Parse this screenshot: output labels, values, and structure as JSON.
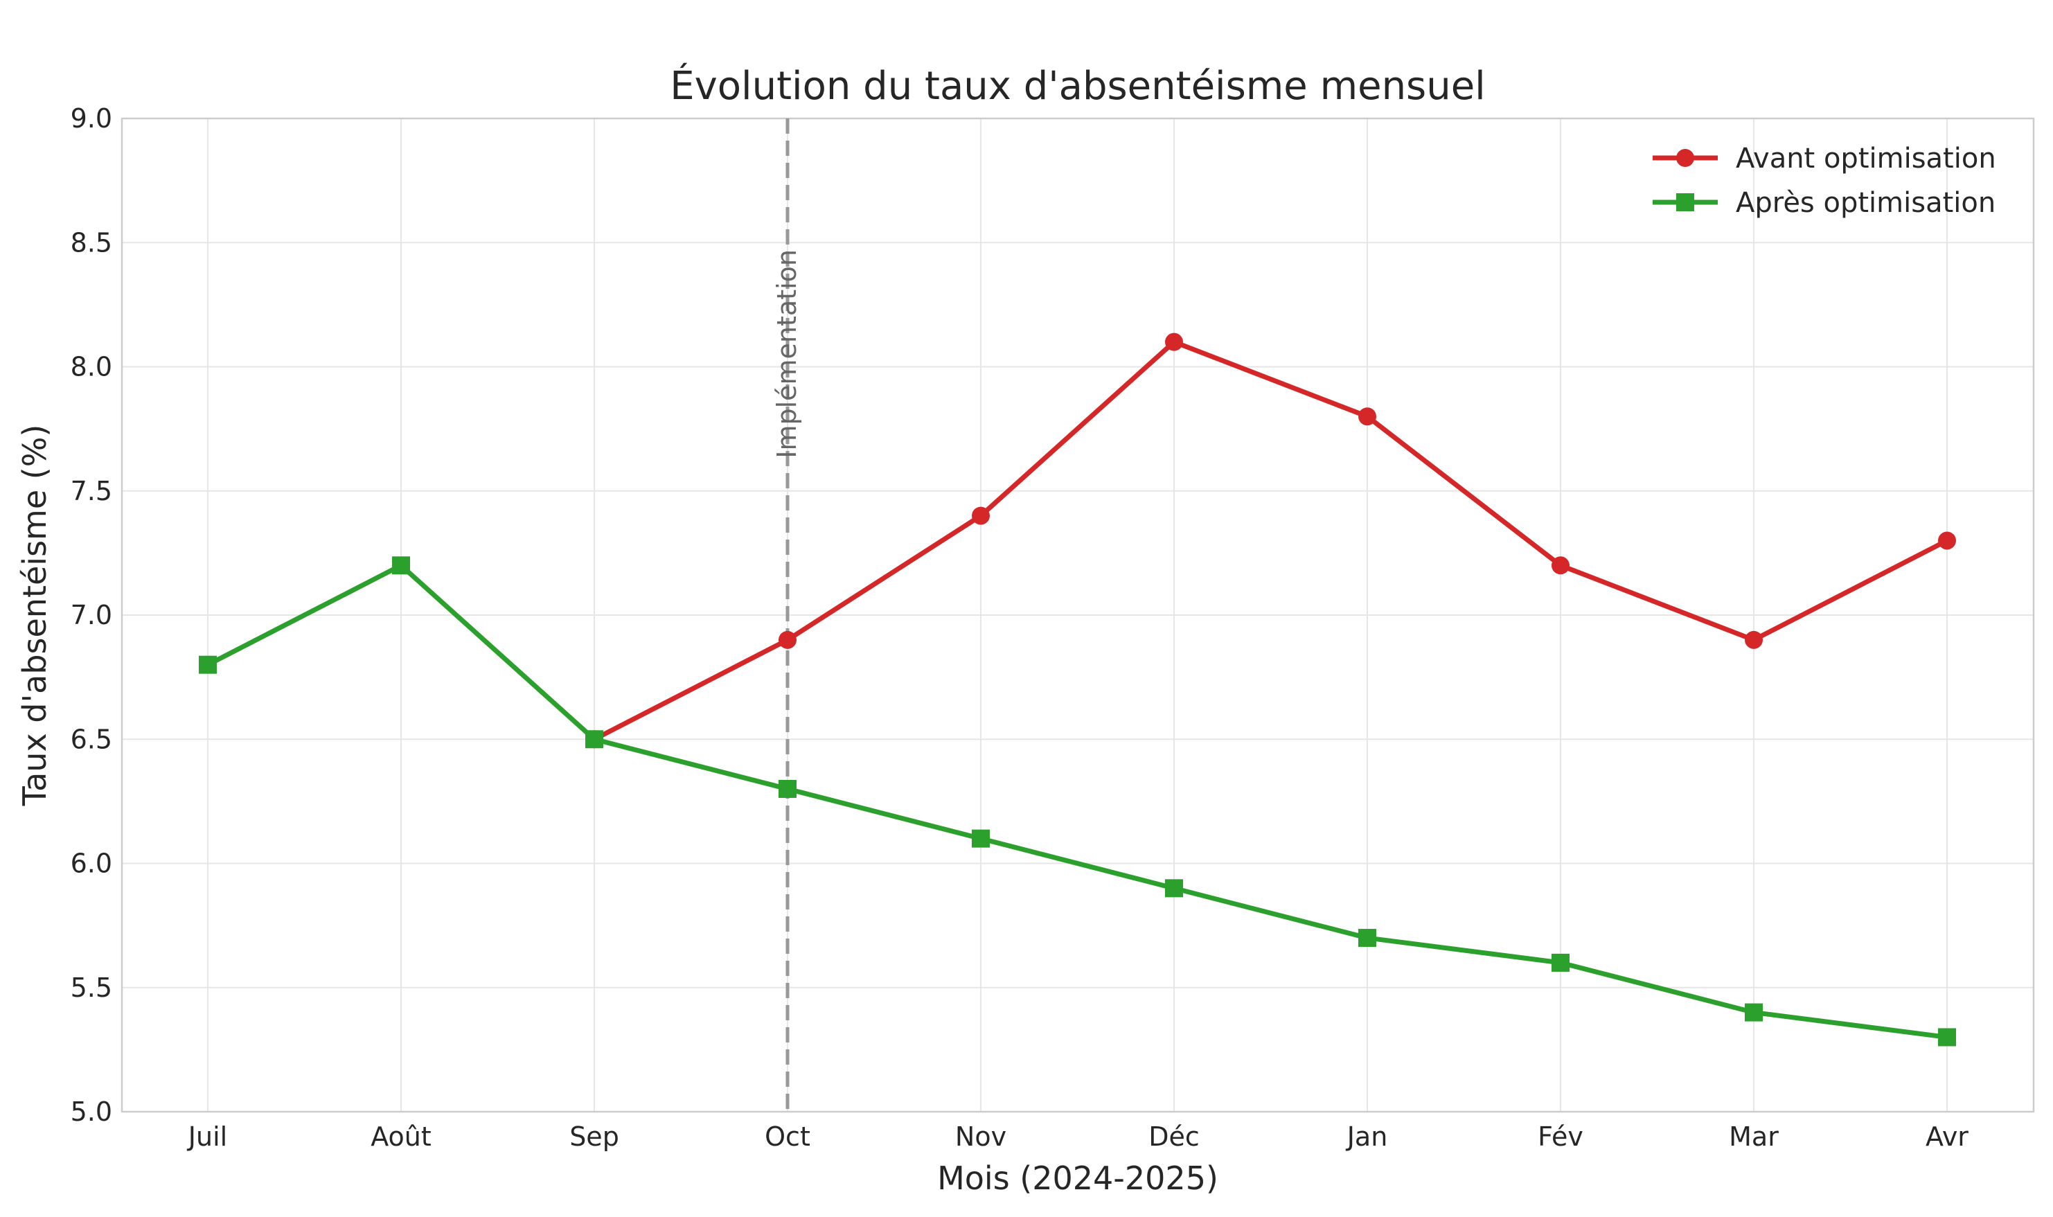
{
  "chart_data": {
    "type": "line",
    "title": "Évolution du taux d'absentéisme mensuel",
    "xlabel": "Mois (2024-2025)",
    "ylabel": "Taux d'absentéisme (%)",
    "categories": [
      "Juil",
      "Août",
      "Sep",
      "Oct",
      "Nov",
      "Déc",
      "Jan",
      "Fév",
      "Mar",
      "Avr"
    ],
    "ylim": [
      5.0,
      9.0
    ],
    "yticks": [
      "5.0",
      "5.5",
      "6.0",
      "6.5",
      "7.0",
      "7.5",
      "8.0",
      "8.5",
      "9.0"
    ],
    "ytick_values": [
      5.0,
      5.5,
      6.0,
      6.5,
      7.0,
      7.5,
      8.0,
      8.5,
      9.0
    ],
    "grid": true,
    "legend_position": "top-right",
    "series": [
      {
        "name": "Avant optimisation",
        "color": "#d62728",
        "marker": "circle",
        "values": [
          null,
          null,
          6.5,
          6.9,
          7.4,
          8.1,
          7.8,
          7.2,
          6.9,
          7.3
        ]
      },
      {
        "name": "Après optimisation",
        "color": "#2ca02c",
        "marker": "square",
        "values": [
          6.8,
          7.2,
          6.5,
          6.3,
          6.1,
          5.9,
          5.7,
          5.6,
          5.4,
          5.3
        ]
      }
    ],
    "annotations": [
      {
        "type": "vline",
        "category": "Oct",
        "label": "Implémentation",
        "color": "#999999",
        "style": "dashed"
      }
    ]
  }
}
